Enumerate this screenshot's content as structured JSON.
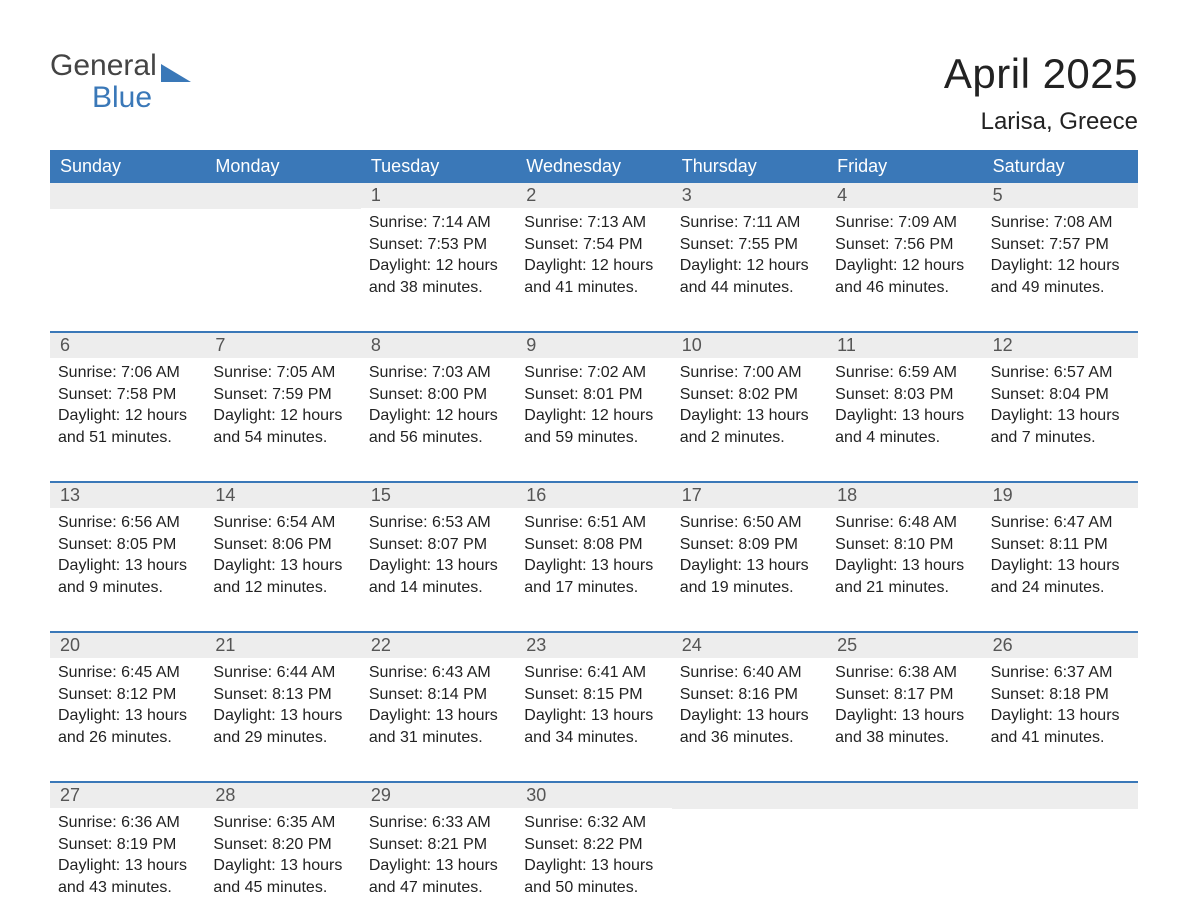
{
  "logo": {
    "word_top": "General",
    "word_bottom": "Blue",
    "top_color": "#444444",
    "bottom_color": "#3a78b8",
    "triangle_color": "#3a78b8"
  },
  "title": "April 2025",
  "location": "Larisa, Greece",
  "colors": {
    "header_bg": "#3a78b8",
    "header_text": "#ffffff",
    "week_divider": "#3a78b8",
    "daynum_bg": "#ededed",
    "daynum_text": "#555555",
    "body_text": "#222222",
    "page_bg": "#ffffff"
  },
  "layout": {
    "columns": 7,
    "rows": 5,
    "font_family": "Arial",
    "title_fontsize": 42,
    "location_fontsize": 24,
    "dow_fontsize": 18,
    "daynum_fontsize": 18,
    "detail_fontsize": 16
  },
  "days_of_week": [
    "Sunday",
    "Monday",
    "Tuesday",
    "Wednesday",
    "Thursday",
    "Friday",
    "Saturday"
  ],
  "weeks": [
    [
      {
        "num": "",
        "sunrise": "",
        "sunset": "",
        "daylight": ""
      },
      {
        "num": "",
        "sunrise": "",
        "sunset": "",
        "daylight": ""
      },
      {
        "num": "1",
        "sunrise": "Sunrise: 7:14 AM",
        "sunset": "Sunset: 7:53 PM",
        "daylight": "Daylight: 12 hours and 38 minutes."
      },
      {
        "num": "2",
        "sunrise": "Sunrise: 7:13 AM",
        "sunset": "Sunset: 7:54 PM",
        "daylight": "Daylight: 12 hours and 41 minutes."
      },
      {
        "num": "3",
        "sunrise": "Sunrise: 7:11 AM",
        "sunset": "Sunset: 7:55 PM",
        "daylight": "Daylight: 12 hours and 44 minutes."
      },
      {
        "num": "4",
        "sunrise": "Sunrise: 7:09 AM",
        "sunset": "Sunset: 7:56 PM",
        "daylight": "Daylight: 12 hours and 46 minutes."
      },
      {
        "num": "5",
        "sunrise": "Sunrise: 7:08 AM",
        "sunset": "Sunset: 7:57 PM",
        "daylight": "Daylight: 12 hours and 49 minutes."
      }
    ],
    [
      {
        "num": "6",
        "sunrise": "Sunrise: 7:06 AM",
        "sunset": "Sunset: 7:58 PM",
        "daylight": "Daylight: 12 hours and 51 minutes."
      },
      {
        "num": "7",
        "sunrise": "Sunrise: 7:05 AM",
        "sunset": "Sunset: 7:59 PM",
        "daylight": "Daylight: 12 hours and 54 minutes."
      },
      {
        "num": "8",
        "sunrise": "Sunrise: 7:03 AM",
        "sunset": "Sunset: 8:00 PM",
        "daylight": "Daylight: 12 hours and 56 minutes."
      },
      {
        "num": "9",
        "sunrise": "Sunrise: 7:02 AM",
        "sunset": "Sunset: 8:01 PM",
        "daylight": "Daylight: 12 hours and 59 minutes."
      },
      {
        "num": "10",
        "sunrise": "Sunrise: 7:00 AM",
        "sunset": "Sunset: 8:02 PM",
        "daylight": "Daylight: 13 hours and 2 minutes."
      },
      {
        "num": "11",
        "sunrise": "Sunrise: 6:59 AM",
        "sunset": "Sunset: 8:03 PM",
        "daylight": "Daylight: 13 hours and 4 minutes."
      },
      {
        "num": "12",
        "sunrise": "Sunrise: 6:57 AM",
        "sunset": "Sunset: 8:04 PM",
        "daylight": "Daylight: 13 hours and 7 minutes."
      }
    ],
    [
      {
        "num": "13",
        "sunrise": "Sunrise: 6:56 AM",
        "sunset": "Sunset: 8:05 PM",
        "daylight": "Daylight: 13 hours and 9 minutes."
      },
      {
        "num": "14",
        "sunrise": "Sunrise: 6:54 AM",
        "sunset": "Sunset: 8:06 PM",
        "daylight": "Daylight: 13 hours and 12 minutes."
      },
      {
        "num": "15",
        "sunrise": "Sunrise: 6:53 AM",
        "sunset": "Sunset: 8:07 PM",
        "daylight": "Daylight: 13 hours and 14 minutes."
      },
      {
        "num": "16",
        "sunrise": "Sunrise: 6:51 AM",
        "sunset": "Sunset: 8:08 PM",
        "daylight": "Daylight: 13 hours and 17 minutes."
      },
      {
        "num": "17",
        "sunrise": "Sunrise: 6:50 AM",
        "sunset": "Sunset: 8:09 PM",
        "daylight": "Daylight: 13 hours and 19 minutes."
      },
      {
        "num": "18",
        "sunrise": "Sunrise: 6:48 AM",
        "sunset": "Sunset: 8:10 PM",
        "daylight": "Daylight: 13 hours and 21 minutes."
      },
      {
        "num": "19",
        "sunrise": "Sunrise: 6:47 AM",
        "sunset": "Sunset: 8:11 PM",
        "daylight": "Daylight: 13 hours and 24 minutes."
      }
    ],
    [
      {
        "num": "20",
        "sunrise": "Sunrise: 6:45 AM",
        "sunset": "Sunset: 8:12 PM",
        "daylight": "Daylight: 13 hours and 26 minutes."
      },
      {
        "num": "21",
        "sunrise": "Sunrise: 6:44 AM",
        "sunset": "Sunset: 8:13 PM",
        "daylight": "Daylight: 13 hours and 29 minutes."
      },
      {
        "num": "22",
        "sunrise": "Sunrise: 6:43 AM",
        "sunset": "Sunset: 8:14 PM",
        "daylight": "Daylight: 13 hours and 31 minutes."
      },
      {
        "num": "23",
        "sunrise": "Sunrise: 6:41 AM",
        "sunset": "Sunset: 8:15 PM",
        "daylight": "Daylight: 13 hours and 34 minutes."
      },
      {
        "num": "24",
        "sunrise": "Sunrise: 6:40 AM",
        "sunset": "Sunset: 8:16 PM",
        "daylight": "Daylight: 13 hours and 36 minutes."
      },
      {
        "num": "25",
        "sunrise": "Sunrise: 6:38 AM",
        "sunset": "Sunset: 8:17 PM",
        "daylight": "Daylight: 13 hours and 38 minutes."
      },
      {
        "num": "26",
        "sunrise": "Sunrise: 6:37 AM",
        "sunset": "Sunset: 8:18 PM",
        "daylight": "Daylight: 13 hours and 41 minutes."
      }
    ],
    [
      {
        "num": "27",
        "sunrise": "Sunrise: 6:36 AM",
        "sunset": "Sunset: 8:19 PM",
        "daylight": "Daylight: 13 hours and 43 minutes."
      },
      {
        "num": "28",
        "sunrise": "Sunrise: 6:35 AM",
        "sunset": "Sunset: 8:20 PM",
        "daylight": "Daylight: 13 hours and 45 minutes."
      },
      {
        "num": "29",
        "sunrise": "Sunrise: 6:33 AM",
        "sunset": "Sunset: 8:21 PM",
        "daylight": "Daylight: 13 hours and 47 minutes."
      },
      {
        "num": "30",
        "sunrise": "Sunrise: 6:32 AM",
        "sunset": "Sunset: 8:22 PM",
        "daylight": "Daylight: 13 hours and 50 minutes."
      },
      {
        "num": "",
        "sunrise": "",
        "sunset": "",
        "daylight": ""
      },
      {
        "num": "",
        "sunrise": "",
        "sunset": "",
        "daylight": ""
      },
      {
        "num": "",
        "sunrise": "",
        "sunset": "",
        "daylight": ""
      }
    ]
  ]
}
